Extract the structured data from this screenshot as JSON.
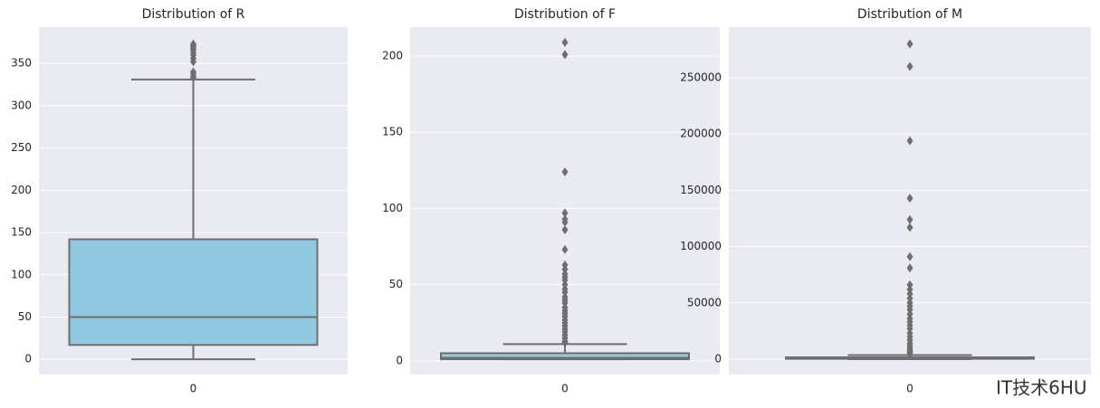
{
  "chart_data": [
    {
      "type": "box",
      "title": "Distribution of R",
      "categories": [
        "0"
      ],
      "whislo": 0,
      "q1": 17,
      "median": 50,
      "q3": 142,
      "whishi": 331,
      "outliers": [
        333,
        335,
        338,
        340,
        352,
        356,
        360,
        363,
        366,
        368,
        370,
        372,
        373
      ],
      "color": "#92c9e2",
      "line_color": "#6e6e6e",
      "ylim": [
        -18,
        393
      ],
      "yticks": [
        0,
        50,
        100,
        150,
        200,
        250,
        300,
        350
      ],
      "grid": true
    },
    {
      "type": "box",
      "title": "Distribution of F",
      "categories": [
        "0"
      ],
      "whislo": 1,
      "q1": 1,
      "median": 2,
      "q3": 5,
      "whishi": 11,
      "outliers": [
        12,
        13,
        15,
        17,
        19,
        21,
        23,
        25,
        27,
        29,
        31,
        33,
        35,
        38,
        40,
        42,
        45,
        47,
        50,
        53,
        55,
        57,
        60,
        63,
        73,
        86,
        91,
        93,
        97,
        124,
        201,
        209
      ],
      "color": "#92c9e2",
      "line_color": "#6e6e6e",
      "ylim": [
        -9,
        219
      ],
      "yticks": [
        0,
        50,
        100,
        150,
        200
      ],
      "grid": true
    },
    {
      "type": "box",
      "title": "Distribution of M",
      "categories": [
        "0"
      ],
      "whislo": 0,
      "q1": 300,
      "median": 650,
      "q3": 1600,
      "whishi": 3600,
      "outliers": [
        4000,
        5000,
        6000,
        7000,
        8000,
        10000,
        12000,
        14000,
        17000,
        20000,
        23000,
        27000,
        30000,
        33000,
        36000,
        40000,
        44000,
        47000,
        50000,
        54000,
        58000,
        62000,
        66000,
        81000,
        91000,
        117000,
        124000,
        143000,
        194000,
        260000,
        280000
      ],
      "color": "#92c9e2",
      "line_color": "#6e6e6e",
      "ylim": [
        -13700,
        295000
      ],
      "yticks": [
        0,
        50000,
        100000,
        150000,
        200000,
        250000
      ],
      "grid": true
    }
  ],
  "watermark": "IT技术6HU"
}
